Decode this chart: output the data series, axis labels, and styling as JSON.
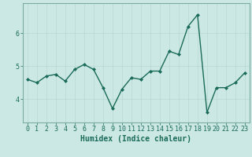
{
  "x": [
    0,
    1,
    2,
    3,
    4,
    5,
    6,
    7,
    8,
    9,
    10,
    11,
    12,
    13,
    14,
    15,
    16,
    17,
    18,
    19,
    20,
    21,
    22,
    23
  ],
  "y": [
    4.6,
    4.5,
    4.7,
    4.75,
    4.55,
    4.9,
    5.05,
    4.9,
    4.35,
    3.72,
    4.3,
    4.65,
    4.6,
    4.85,
    4.85,
    5.45,
    5.35,
    6.2,
    6.55,
    3.6,
    4.35,
    4.35,
    4.5,
    4.8
  ],
  "line_color": "#1a6b5a",
  "marker": "D",
  "marker_size": 2.0,
  "line_width": 1.0,
  "bg_color": "#cce8e4",
  "grid_color": "#b8d8d4",
  "xlabel": "Humidex (Indice chaleur)",
  "xlabel_fontsize": 7,
  "tick_fontsize": 6,
  "yticks": [
    4,
    5,
    6
  ],
  "ylim": [
    3.3,
    6.9
  ],
  "xlim": [
    -0.5,
    23.5
  ],
  "xtick_labels": [
    "0",
    "1",
    "2",
    "3",
    "4",
    "5",
    "6",
    "7",
    "8",
    "9",
    "10",
    "11",
    "12",
    "13",
    "14",
    "15",
    "16",
    "17",
    "18",
    "19",
    "20",
    "21",
    "22",
    "23"
  ],
  "spine_color": "#7aaba5"
}
